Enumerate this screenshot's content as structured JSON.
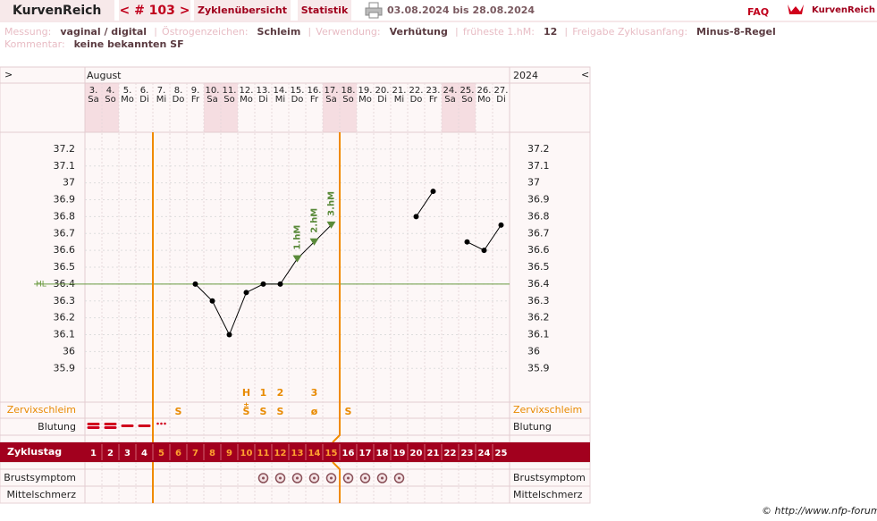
{
  "header": {
    "brand": "KurvenReich",
    "cycle_nav": "< # 103 >",
    "tabs": [
      "Zyklenübersicht",
      "Statistik"
    ],
    "date_range": "03.08.2024 bis 28.08.2024",
    "faq": "FAQ",
    "logo": "KurvenReich"
  },
  "info": [
    [
      {
        "label": "Messung:",
        "value": "vaginal / digital"
      },
      {
        "label": "Östrogenzeichen:",
        "value": "Schleim"
      },
      {
        "label": "Verwendung:",
        "value": "Verhütung"
      },
      {
        "label": "früheste 1.hM:",
        "value": "12"
      },
      {
        "label": "Freigabe Zyklusanfang:",
        "value": "Minus-8-Regel"
      }
    ],
    [
      {
        "label": "Kommentar:",
        "value": "keine bekannten SF"
      }
    ]
  ],
  "chart_data": {
    "type": "line",
    "nav_prev": ">",
    "nav_next": "<",
    "month": "August",
    "year": "2024",
    "categories": [
      "3.",
      "4.",
      "5.",
      "6.",
      "7.",
      "8.",
      "9.",
      "10.",
      "11.",
      "12.",
      "13.",
      "14.",
      "15.",
      "16.",
      "17.",
      "18.",
      "19.",
      "20.",
      "21.",
      "22.",
      "23.",
      "24.",
      "25.",
      "26.",
      "27."
    ],
    "weekdays": [
      "Sa",
      "So",
      "Mo",
      "Di",
      "Mi",
      "Do",
      "Fr",
      "Sa",
      "So",
      "Mo",
      "Di",
      "Mi",
      "Do",
      "Fr",
      "Sa",
      "So",
      "Mo",
      "Di",
      "Mi",
      "Do",
      "Fr",
      "Sa",
      "So",
      "Mo",
      "Di"
    ],
    "values": [
      null,
      null,
      null,
      null,
      null,
      null,
      36.4,
      36.3,
      36.1,
      36.35,
      36.4,
      36.4,
      36.55,
      36.65,
      36.75,
      null,
      null,
      null,
      null,
      36.8,
      36.95,
      null,
      36.65,
      36.6,
      36.75
    ],
    "color": "#000000",
    "point_labels": [
      null,
      null,
      null,
      null,
      null,
      null,
      null,
      null,
      null,
      null,
      null,
      null,
      "1.hM",
      "2.hM",
      "3.hM",
      null,
      null,
      null,
      null,
      null,
      null,
      null,
      null,
      null,
      null
    ],
    "ylim": [
      35.7,
      37.3
    ],
    "yticks": [
      35.9,
      36,
      36.1,
      36.2,
      36.3,
      36.4,
      36.5,
      36.6,
      36.7,
      36.8,
      36.9,
      37,
      37.1,
      37.2
    ],
    "hl": {
      "label": "HL",
      "value": 36.4
    },
    "mucus_notes": [
      null,
      null,
      null,
      null,
      null,
      null,
      null,
      null,
      null,
      "H",
      "1",
      "2",
      null,
      "3",
      null,
      null,
      null,
      null,
      null,
      null,
      null,
      null,
      null,
      null,
      null
    ],
    "mucus_modifiers": [
      null,
      null,
      null,
      null,
      null,
      null,
      null,
      null,
      null,
      "±",
      null,
      null,
      null,
      null,
      null,
      null,
      null,
      null,
      null,
      null,
      null,
      null,
      null,
      null,
      null
    ],
    "mucus": [
      null,
      null,
      null,
      null,
      null,
      "S",
      null,
      null,
      null,
      "S",
      "S",
      "S",
      null,
      "ø",
      null,
      "S",
      null,
      null,
      null,
      null,
      null,
      null,
      null,
      null,
      null
    ],
    "cycle_days": [
      1,
      2,
      3,
      4,
      5,
      6,
      7,
      8,
      9,
      10,
      11,
      12,
      13,
      14,
      15,
      16,
      17,
      18,
      19,
      20,
      21,
      22,
      23,
      24,
      25
    ],
    "row_labels": {
      "mucus": "Zervixschleim",
      "bleeding": "Blutung",
      "cycle_day": "Zyklustag",
      "breast": "Brustsymptom",
      "mittelschmerz": "Mittelschmerz"
    }
  },
  "footer": "© http://www.nfp-forum.de"
}
